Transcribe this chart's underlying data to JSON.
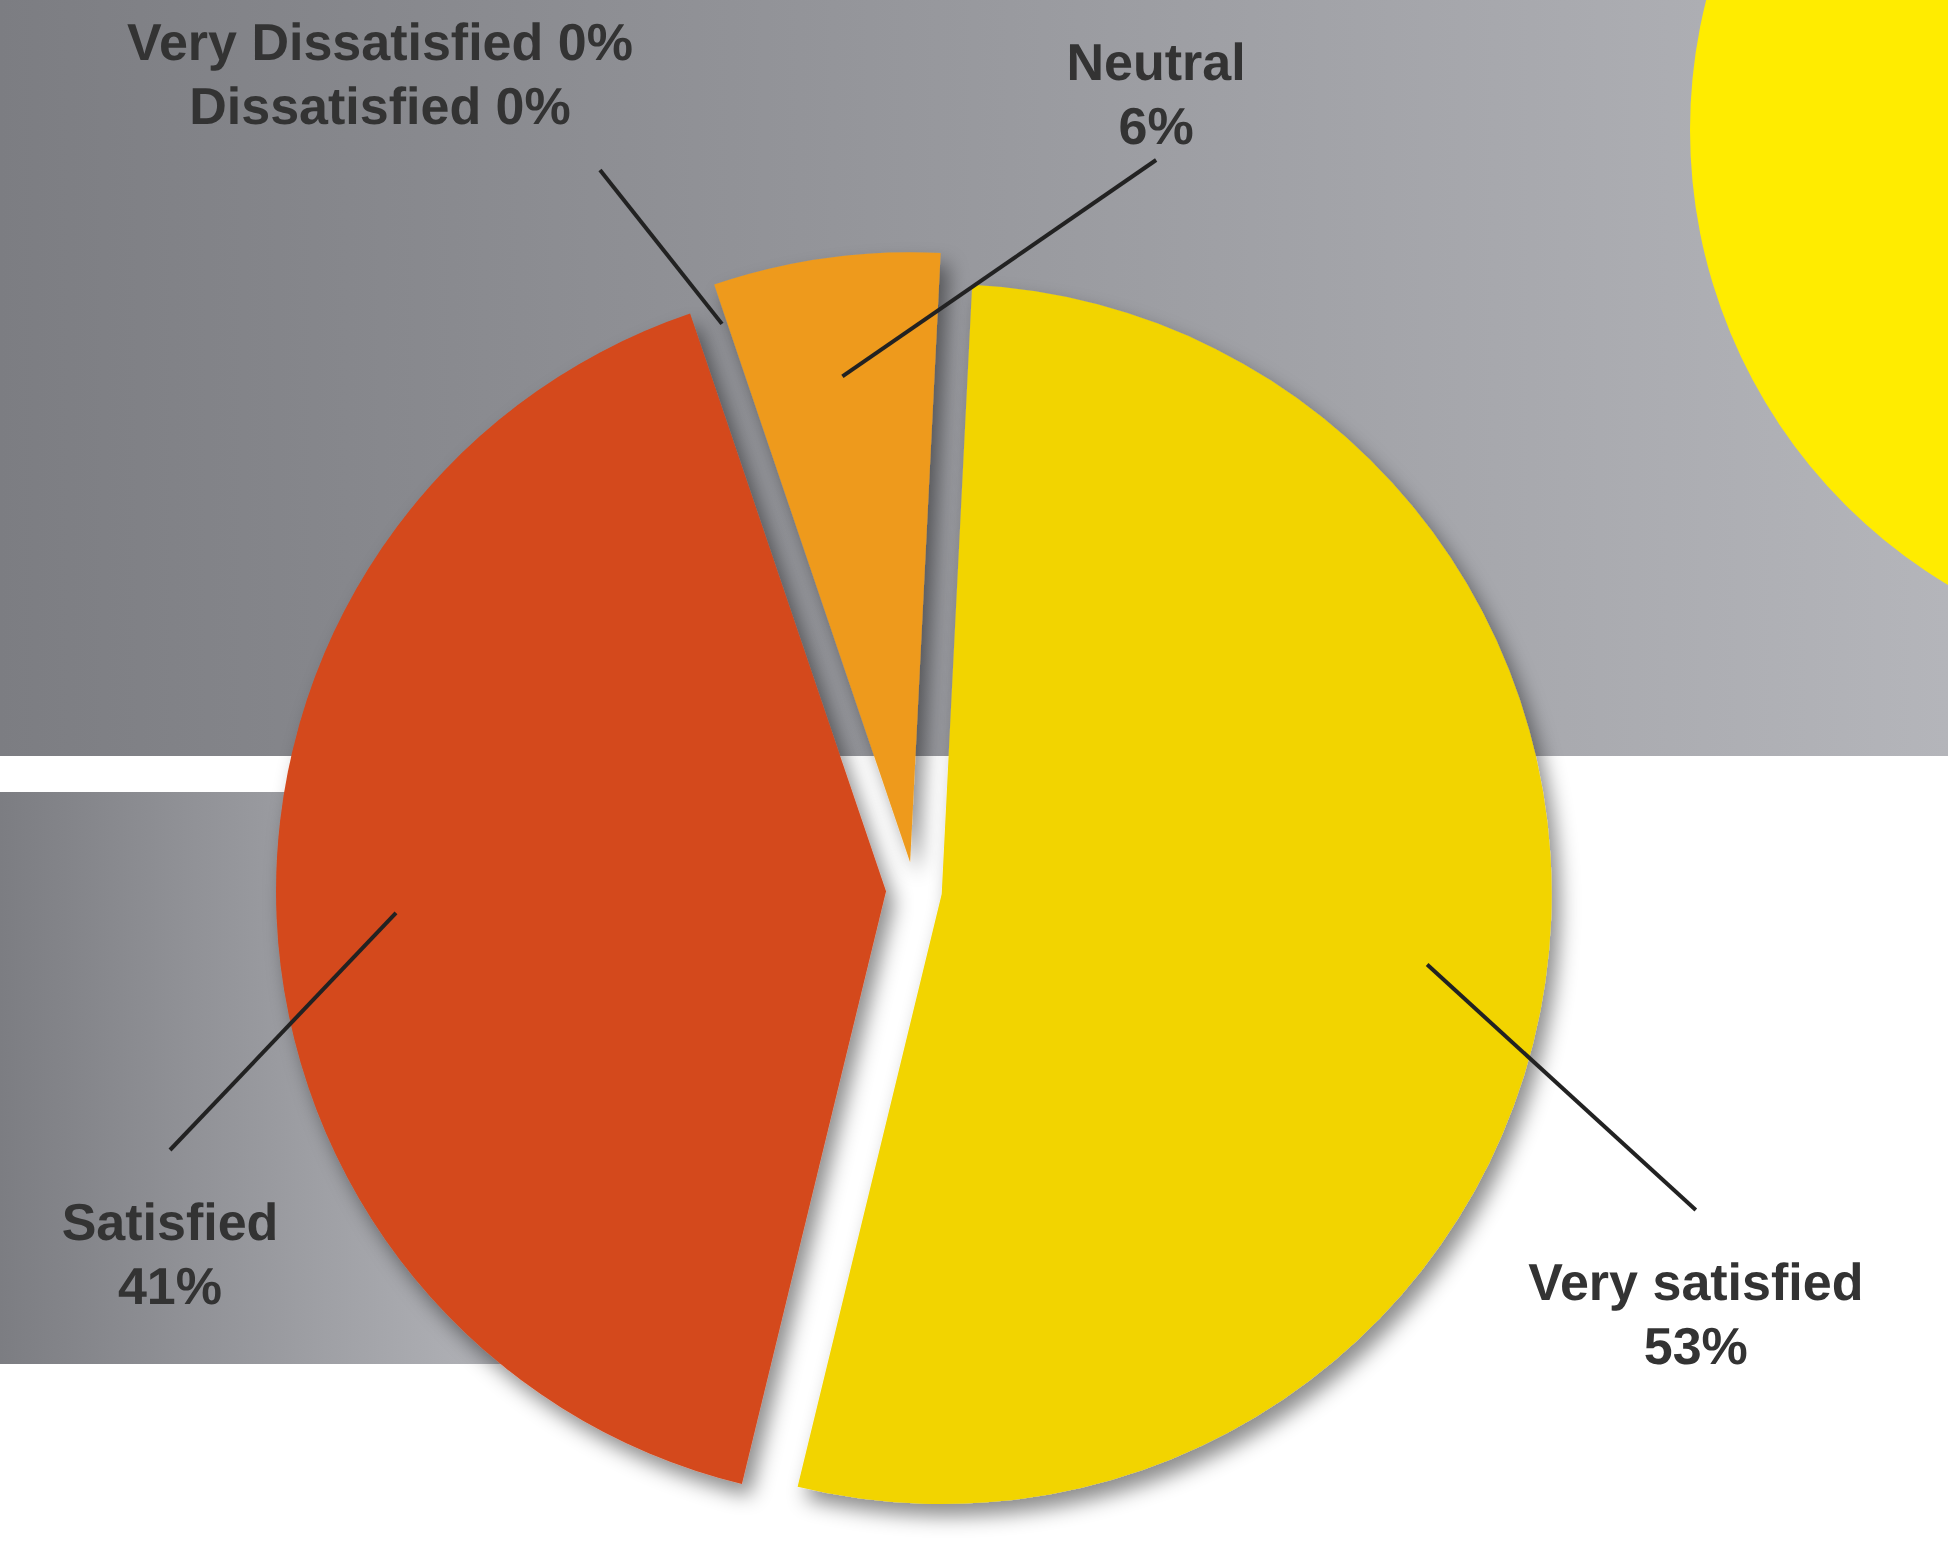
{
  "chart_data": {
    "type": "pie",
    "categories": [
      "Very satisfied",
      "Satisfied",
      "Dissatisfied",
      "Very Dissatisfied",
      "Neutral"
    ],
    "values": [
      53,
      41,
      0,
      0,
      6
    ],
    "value_labels": [
      "53%",
      "41%",
      "0%",
      "0%",
      "6%"
    ],
    "colors": [
      "#f2d400",
      "#d4481c",
      "#c0392b",
      "#a01010",
      "#ee9a1c"
    ]
  }
}
